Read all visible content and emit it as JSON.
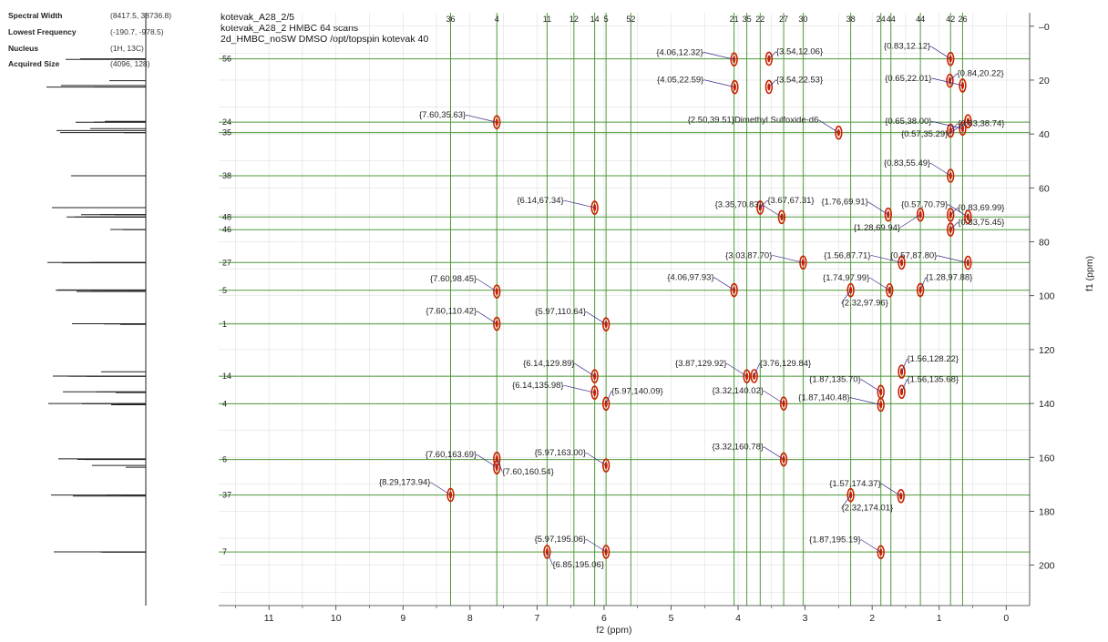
{
  "params": [
    {
      "name": "Spectral Width",
      "value": "(8417.5, 38736.8)"
    },
    {
      "name": "Lowest Frequency",
      "value": "(-190.7, -978.5)"
    },
    {
      "name": "Nucleus",
      "value": "(1H, 13C)"
    },
    {
      "name": "Acquired Size",
      "value": "(4096, 128)"
    }
  ],
  "header": {
    "line1": "kotevak_A28_2/5",
    "line2": "kotevak_A28_2 HMBC 64 scans",
    "line3": "2d_HMBC_noSW DMSO /opt/topspin kotevak 40"
  },
  "colors": {
    "grid": "#4e9a3a",
    "peak": "#cc2200",
    "label": "#3a2a8a",
    "minor_grid": "#d8d8d8"
  },
  "chart_data": {
    "type": "heatmap",
    "title": "",
    "xlabel": "f2 (ppm)",
    "ylabel": "f1 (ppm)",
    "xlim": [
      11.75,
      -0.35
    ],
    "ylim": [
      -5,
      215
    ],
    "xticks": [
      11,
      10,
      9,
      8,
      7,
      6,
      5,
      4,
      3,
      2,
      1,
      0
    ],
    "yticks": [
      0,
      20,
      40,
      60,
      80,
      100,
      120,
      140,
      160,
      180,
      200
    ],
    "vertical_lines": [
      {
        "label": "36",
        "ppm": 8.29
      },
      {
        "label": "4",
        "ppm": 7.6
      },
      {
        "label": "11",
        "ppm": 6.85
      },
      {
        "label": "12",
        "ppm": 6.45
      },
      {
        "label": "14",
        "ppm": 6.14
      },
      {
        "label": "5",
        "ppm": 5.97
      },
      {
        "label": "52",
        "ppm": 5.6
      },
      {
        "label": "21",
        "ppm": 4.06
      },
      {
        "label": "35",
        "ppm": 3.87
      },
      {
        "label": "22",
        "ppm": 3.67
      },
      {
        "label": "27",
        "ppm": 3.32
      },
      {
        "label": "30",
        "ppm": 3.03
      },
      {
        "label": "38",
        "ppm": 2.32
      },
      {
        "label": "24",
        "ppm": 1.87
      },
      {
        "label": "44",
        "ppm": 1.72
      },
      {
        "label": "44",
        "ppm": 1.28
      },
      {
        "label": "42",
        "ppm": 0.83
      },
      {
        "label": "26",
        "ppm": 0.65
      }
    ],
    "horizontal_lines": [
      {
        "label": "56",
        "ppm": 12.1
      },
      {
        "label": "24",
        "ppm": 35.6
      },
      {
        "label": "35",
        "ppm": 39.5
      },
      {
        "label": "38",
        "ppm": 55.5
      },
      {
        "label": "48",
        "ppm": 70.8
      },
      {
        "label": "46",
        "ppm": 75.5
      },
      {
        "label": "27",
        "ppm": 87.7
      },
      {
        "label": "5",
        "ppm": 98.0
      },
      {
        "label": "1",
        "ppm": 110.5
      },
      {
        "label": "14",
        "ppm": 129.9
      },
      {
        "label": "4",
        "ppm": 140.1
      },
      {
        "label": "6",
        "ppm": 160.8
      },
      {
        "label": "37",
        "ppm": 174.0
      },
      {
        "label": "7",
        "ppm": 195.1
      }
    ],
    "peaks": [
      {
        "x": 4.06,
        "y": 12.32
      },
      {
        "x": 3.54,
        "y": 12.06
      },
      {
        "x": 0.83,
        "y": 12.12
      },
      {
        "x": 4.05,
        "y": 22.59
      },
      {
        "x": 3.54,
        "y": 22.53
      },
      {
        "x": 0.65,
        "y": 22.0
      },
      {
        "x": 0.84,
        "y": 20.22
      },
      {
        "x": 7.6,
        "y": 35.63
      },
      {
        "x": 2.5,
        "y": 39.51
      },
      {
        "x": 0.65,
        "y": 38.0
      },
      {
        "x": 0.83,
        "y": 38.74
      },
      {
        "x": 0.57,
        "y": 35.29
      },
      {
        "x": 0.83,
        "y": 55.49
      },
      {
        "x": 6.14,
        "y": 67.34
      },
      {
        "x": 3.35,
        "y": 70.83
      },
      {
        "x": 3.67,
        "y": 67.31
      },
      {
        "x": 1.76,
        "y": 69.91
      },
      {
        "x": 0.57,
        "y": 70.79
      },
      {
        "x": 0.83,
        "y": 69.99
      },
      {
        "x": 1.28,
        "y": 69.94
      },
      {
        "x": 3.03,
        "y": 87.7
      },
      {
        "x": 1.56,
        "y": 87.71
      },
      {
        "x": 0.57,
        "y": 87.8
      },
      {
        "x": 0.83,
        "y": 75.45
      },
      {
        "x": 7.6,
        "y": 98.45
      },
      {
        "x": 4.06,
        "y": 97.93
      },
      {
        "x": 1.74,
        "y": 97.99
      },
      {
        "x": 1.28,
        "y": 97.88
      },
      {
        "x": 2.32,
        "y": 97.96
      },
      {
        "x": 7.6,
        "y": 110.42
      },
      {
        "x": 5.97,
        "y": 110.64
      },
      {
        "x": 3.87,
        "y": 129.92
      },
      {
        "x": 3.76,
        "y": 129.84
      },
      {
        "x": 1.56,
        "y": 128.22
      },
      {
        "x": 6.14,
        "y": 129.89
      },
      {
        "x": 6.14,
        "y": 135.98
      },
      {
        "x": 5.97,
        "y": 140.09
      },
      {
        "x": 3.32,
        "y": 140.02
      },
      {
        "x": 1.87,
        "y": 135.7
      },
      {
        "x": 1.56,
        "y": 135.68
      },
      {
        "x": 1.87,
        "y": 140.48
      },
      {
        "x": 3.32,
        "y": 160.78
      },
      {
        "x": 7.6,
        "y": 163.69
      },
      {
        "x": 5.97,
        "y": 163.0
      },
      {
        "x": 7.6,
        "y": 160.54
      },
      {
        "x": 8.29,
        "y": 173.94
      },
      {
        "x": 1.57,
        "y": 174.37
      },
      {
        "x": 2.32,
        "y": 174.01
      },
      {
        "x": 5.97,
        "y": 195.06
      },
      {
        "x": 6.85,
        "y": 195.06
      },
      {
        "x": 1.87,
        "y": 195.19
      }
    ],
    "annotations": [
      {
        "text": "{4.06,12.32}",
        "x": 4.06,
        "y": 12.32,
        "pos": "left"
      },
      {
        "text": "{3.54,12.06}",
        "x": 3.54,
        "y": 12.06,
        "pos": "right"
      },
      {
        "text": "{0.83,12.12}",
        "x": 0.83,
        "y": 12.12,
        "pos": "upleft"
      },
      {
        "text": "{4.05,22.59}",
        "x": 4.05,
        "y": 22.59,
        "pos": "left"
      },
      {
        "text": "{3.54,22.53}",
        "x": 3.54,
        "y": 22.53,
        "pos": "right"
      },
      {
        "text": "{0.65,22.01}",
        "x": 0.65,
        "y": 22.0,
        "pos": "left"
      },
      {
        "text": "{0.84,20.22}",
        "x": 0.84,
        "y": 20.22,
        "pos": "right"
      },
      {
        "text": "{7.60,35.63}",
        "x": 7.6,
        "y": 35.63,
        "pos": "left"
      },
      {
        "text": "{2.50,39.51}Dimethyl Sulfoxide-d6",
        "x": 2.5,
        "y": 39.51,
        "pos": "upleft"
      },
      {
        "text": "{0.65,38.00}",
        "x": 0.65,
        "y": 38.0,
        "pos": "left"
      },
      {
        "text": "{0.83,38.74}",
        "x": 0.83,
        "y": 38.74,
        "pos": "right"
      },
      {
        "text": "{0.57,35.29}",
        "x": 0.57,
        "y": 35.29,
        "pos": "downleft"
      },
      {
        "text": "{0.83,55.49}",
        "x": 0.83,
        "y": 55.49,
        "pos": "upleft"
      },
      {
        "text": "{6.14,67.34}",
        "x": 6.14,
        "y": 67.34,
        "pos": "left"
      },
      {
        "text": "{3.35,70.83}",
        "x": 3.35,
        "y": 70.83,
        "pos": "upleft"
      },
      {
        "text": "{3.67,67.31}",
        "x": 3.67,
        "y": 67.31,
        "pos": "right"
      },
      {
        "text": "{1.76,69.91}",
        "x": 1.76,
        "y": 69.91,
        "pos": "upleft"
      },
      {
        "text": "{0.57,70.79}",
        "x": 0.57,
        "y": 70.79,
        "pos": "upleft"
      },
      {
        "text": "{0.83,69.99}",
        "x": 0.83,
        "y": 69.99,
        "pos": "right"
      },
      {
        "text": "{1.28,69.94}",
        "x": 1.28,
        "y": 69.94,
        "pos": "downleft"
      },
      {
        "text": "{3.03,87.70}",
        "x": 3.03,
        "y": 87.7,
        "pos": "left"
      },
      {
        "text": "{1.56,87.71}",
        "x": 1.56,
        "y": 87.71,
        "pos": "left"
      },
      {
        "text": "{0.57,87.80}",
        "x": 0.57,
        "y": 87.8,
        "pos": "left"
      },
      {
        "text": "{0.83,75.45}",
        "x": 0.83,
        "y": 75.45,
        "pos": "right"
      },
      {
        "text": "{7.60,98.45}",
        "x": 7.6,
        "y": 98.45,
        "pos": "upleft"
      },
      {
        "text": "{4.06,97.93}",
        "x": 4.06,
        "y": 97.93,
        "pos": "upleft"
      },
      {
        "text": "{1.74,97.99}",
        "x": 1.74,
        "y": 97.99,
        "pos": "upleft"
      },
      {
        "text": "{1.28,97.88}",
        "x": 1.28,
        "y": 97.88,
        "pos": "upright"
      },
      {
        "text": "{2.32,97.96}",
        "x": 2.32,
        "y": 97.96,
        "pos": "down"
      },
      {
        "text": "{7.60,110.42}",
        "x": 7.6,
        "y": 110.42,
        "pos": "upleft"
      },
      {
        "text": "{5.97,110.64}",
        "x": 5.97,
        "y": 110.64,
        "pos": "upleft"
      },
      {
        "text": "{3.87,129.92}",
        "x": 3.87,
        "y": 129.92,
        "pos": "upleft"
      },
      {
        "text": "{3.76,129.84}",
        "x": 3.76,
        "y": 129.84,
        "pos": "upright"
      },
      {
        "text": "{1.56,128.22}",
        "x": 1.56,
        "y": 128.22,
        "pos": "upright"
      },
      {
        "text": "{6.14,129.89}",
        "x": 6.14,
        "y": 129.89,
        "pos": "upleft"
      },
      {
        "text": "{6.14,135.98}",
        "x": 6.14,
        "y": 135.98,
        "pos": "left"
      },
      {
        "text": "{5.97,140.09}",
        "x": 5.97,
        "y": 140.09,
        "pos": "upright"
      },
      {
        "text": "{3.32,140.02}",
        "x": 3.32,
        "y": 140.02,
        "pos": "upleft"
      },
      {
        "text": "{1.87,135.70}",
        "x": 1.87,
        "y": 135.7,
        "pos": "upleft"
      },
      {
        "text": "{1.56,135.68}",
        "x": 1.56,
        "y": 135.68,
        "pos": "upright"
      },
      {
        "text": "{1.87,140.48}",
        "x": 1.87,
        "y": 140.48,
        "pos": "left"
      },
      {
        "text": "{3.32,160.78}",
        "x": 3.32,
        "y": 160.78,
        "pos": "upleft"
      },
      {
        "text": "{7.60,163.69}",
        "x": 7.6,
        "y": 163.69,
        "pos": "upleft"
      },
      {
        "text": "{5.97,163.00}",
        "x": 5.97,
        "y": 163.0,
        "pos": "upleft"
      },
      {
        "text": "{7.60,160.54}",
        "x": 7.6,
        "y": 160.54,
        "pos": "downright"
      },
      {
        "text": "{8.29,173.94}",
        "x": 8.29,
        "y": 173.94,
        "pos": "upleft"
      },
      {
        "text": "{1.57,174.37}",
        "x": 1.57,
        "y": 174.37,
        "pos": "upleft"
      },
      {
        "text": "{2.32,174.01}",
        "x": 2.32,
        "y": 174.01,
        "pos": "down"
      },
      {
        "text": "{5.97,195.06}",
        "x": 5.97,
        "y": 195.06,
        "pos": "upleft"
      },
      {
        "text": "{6.85,195.06}",
        "x": 6.85,
        "y": 195.06,
        "pos": "downright"
      },
      {
        "text": "{1.87,195.19}",
        "x": 1.87,
        "y": 195.19,
        "pos": "upleft"
      }
    ]
  }
}
